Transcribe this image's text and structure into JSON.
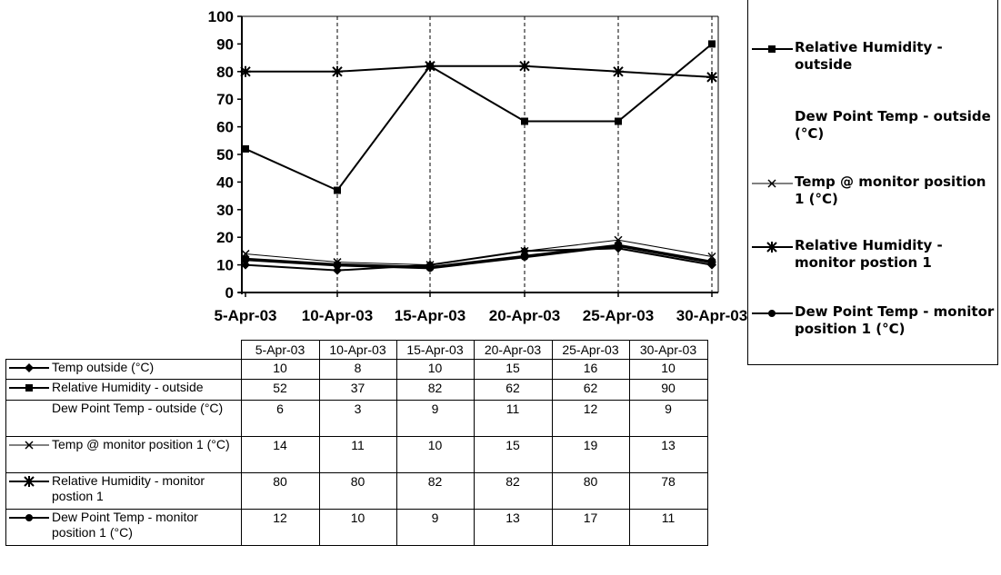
{
  "chart_data": {
    "type": "line",
    "categories": [
      "5-Apr-03",
      "10-Apr-03",
      "15-Apr-03",
      "20-Apr-03",
      "25-Apr-03",
      "30-Apr-03"
    ],
    "ylim": [
      0,
      100
    ],
    "yticks": [
      "0",
      "10",
      "20",
      "30",
      "40",
      "50",
      "60",
      "70",
      "80",
      "90",
      "100"
    ],
    "grid": "vertical dashed",
    "legend_position": "right",
    "series": [
      {
        "name": "Temp outside (°C)",
        "values": [
          10,
          8,
          10,
          15,
          16,
          10
        ],
        "marker": "diamond",
        "line": "solid",
        "show_in_legend": false
      },
      {
        "name": "Relative Humidity - outside",
        "values": [
          52,
          37,
          82,
          62,
          62,
          90
        ],
        "marker": "square",
        "line": "solid",
        "show_in_legend": true
      },
      {
        "name": "Dew Point Temp - outside (°C)",
        "values": [
          6,
          3,
          9,
          11,
          12,
          9
        ],
        "marker": "none",
        "line": "none",
        "show_in_legend": true
      },
      {
        "name": "Temp @ monitor position 1 (°C)",
        "values": [
          14,
          11,
          10,
          15,
          19,
          13
        ],
        "marker": "x",
        "line": "thin",
        "show_in_legend": true
      },
      {
        "name": "Relative Humidity - monitor postion 1",
        "values": [
          80,
          80,
          82,
          82,
          80,
          78
        ],
        "marker": "asterisk",
        "line": "solid",
        "show_in_legend": true
      },
      {
        "name": "Dew Point Temp - monitor position 1 (°C)",
        "values": [
          12,
          10,
          9,
          13,
          17,
          11
        ],
        "marker": "circle",
        "line": "thick",
        "show_in_legend": true
      }
    ]
  },
  "table": {
    "rows": [
      {
        "label": "Temp outside (°C)",
        "values": [
          "10",
          "8",
          "10",
          "15",
          "16",
          "10"
        ]
      },
      {
        "label": "Relative Humidity - outside",
        "values": [
          "52",
          "37",
          "82",
          "62",
          "62",
          "90"
        ]
      },
      {
        "label": "Dew Point Temp - outside (°C)",
        "values": [
          "6",
          "3",
          "9",
          "11",
          "12",
          "9"
        ]
      },
      {
        "label": "Temp @ monitor position 1 (°C)",
        "values": [
          "14",
          "11",
          "10",
          "15",
          "19",
          "13"
        ]
      },
      {
        "label": "Relative Humidity - monitor postion 1",
        "values": [
          "80",
          "80",
          "82",
          "82",
          "80",
          "78"
        ]
      },
      {
        "label": "Dew Point Temp - monitor position 1 (°C)",
        "values": [
          "12",
          "10",
          "9",
          "13",
          "17",
          "11"
        ]
      }
    ]
  }
}
